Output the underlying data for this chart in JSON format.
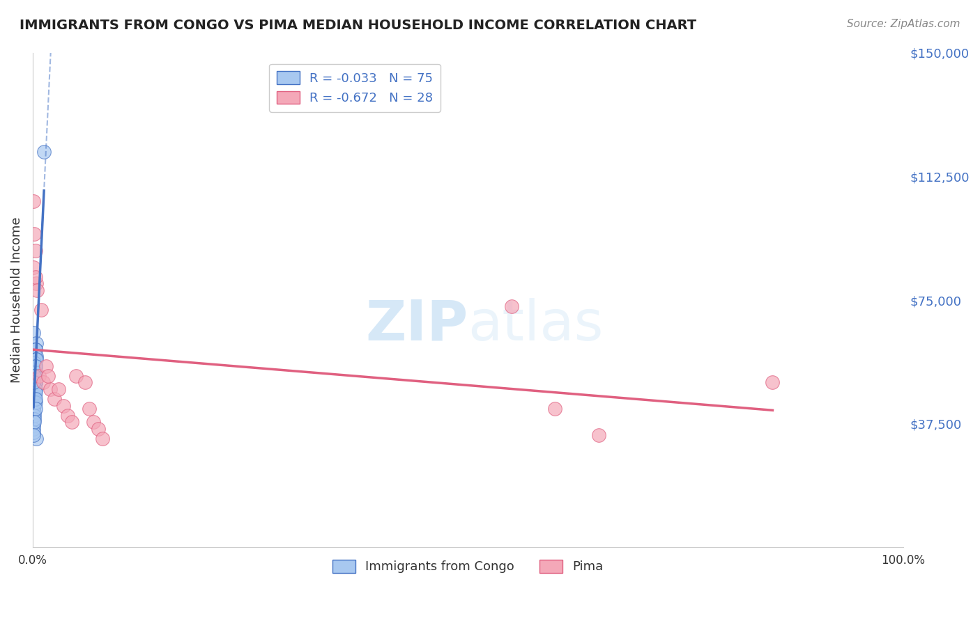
{
  "title": "IMMIGRANTS FROM CONGO VS PIMA MEDIAN HOUSEHOLD INCOME CORRELATION CHART",
  "source": "Source: ZipAtlas.com",
  "ylabel": "Median Household Income",
  "xlim": [
    0,
    1.0
  ],
  "ylim": [
    0,
    150000
  ],
  "ytick_labels": [
    "$37,500",
    "$75,000",
    "$112,500",
    "$150,000"
  ],
  "ytick_values": [
    37500,
    75000,
    112500,
    150000
  ],
  "legend_entry1": "R = -0.033   N = 75",
  "legend_entry2": "R = -0.672   N = 28",
  "legend_label1": "Immigrants from Congo",
  "legend_label2": "Pima",
  "color_blue": "#a8c8f0",
  "color_blue_line": "#4472c4",
  "color_pink": "#f4a8b8",
  "color_pink_line": "#e06080",
  "color_blue_text": "#4472c4",
  "watermark_zip": "ZIP",
  "watermark_atlas": "atlas",
  "background": "#ffffff",
  "grid_color": "#dddddd",
  "blue_scatter_x": [
    0.001,
    0.002,
    0.003,
    0.001,
    0.002,
    0.004,
    0.001,
    0.003,
    0.002,
    0.001,
    0.003,
    0.001,
    0.002,
    0.001,
    0.003,
    0.002,
    0.001,
    0.002,
    0.001,
    0.003,
    0.004,
    0.002,
    0.001,
    0.003,
    0.001,
    0.002,
    0.001,
    0.003,
    0.002,
    0.001,
    0.002,
    0.001,
    0.003,
    0.001,
    0.002,
    0.001,
    0.003,
    0.002,
    0.001,
    0.003,
    0.001,
    0.002,
    0.001,
    0.003,
    0.002,
    0.001,
    0.002,
    0.001,
    0.003,
    0.002,
    0.001,
    0.003,
    0.002,
    0.001,
    0.003,
    0.002,
    0.001,
    0.003,
    0.002,
    0.001,
    0.003,
    0.004,
    0.002,
    0.001,
    0.003,
    0.002,
    0.001,
    0.003,
    0.002,
    0.001,
    0.013,
    0.004,
    0.003,
    0.002,
    0.001
  ],
  "blue_scatter_y": [
    65000,
    60000,
    58000,
    55000,
    57000,
    62000,
    50000,
    53000,
    56000,
    48000,
    60000,
    45000,
    52000,
    47000,
    50000,
    55000,
    43000,
    49000,
    54000,
    60000,
    58000,
    46000,
    44000,
    57000,
    51000,
    48000,
    42000,
    53000,
    56000,
    47000,
    45000,
    41000,
    50000,
    43000,
    52000,
    46000,
    55000,
    48000,
    40000,
    53000,
    39000,
    47000,
    44000,
    51000,
    46000,
    42000,
    48000,
    43000,
    52000,
    45000,
    38000,
    50000,
    44000,
    40000,
    48000,
    43000,
    37000,
    47000,
    41000,
    38000,
    44000,
    33000,
    40000,
    36000,
    45000,
    39000,
    35000,
    42000,
    38000,
    34000,
    120000,
    57000,
    55000,
    52000,
    50000
  ],
  "pink_scatter_x": [
    0.001,
    0.002,
    0.003,
    0.001,
    0.004,
    0.003,
    0.005,
    0.01,
    0.007,
    0.015,
    0.012,
    0.02,
    0.018,
    0.025,
    0.03,
    0.035,
    0.04,
    0.045,
    0.05,
    0.06,
    0.065,
    0.07,
    0.075,
    0.08,
    0.55,
    0.6,
    0.65,
    0.85
  ],
  "pink_scatter_y": [
    105000,
    95000,
    90000,
    85000,
    80000,
    82000,
    78000,
    72000,
    52000,
    55000,
    50000,
    48000,
    52000,
    45000,
    48000,
    43000,
    40000,
    38000,
    52000,
    50000,
    42000,
    38000,
    36000,
    33000,
    73000,
    42000,
    34000,
    50000
  ]
}
